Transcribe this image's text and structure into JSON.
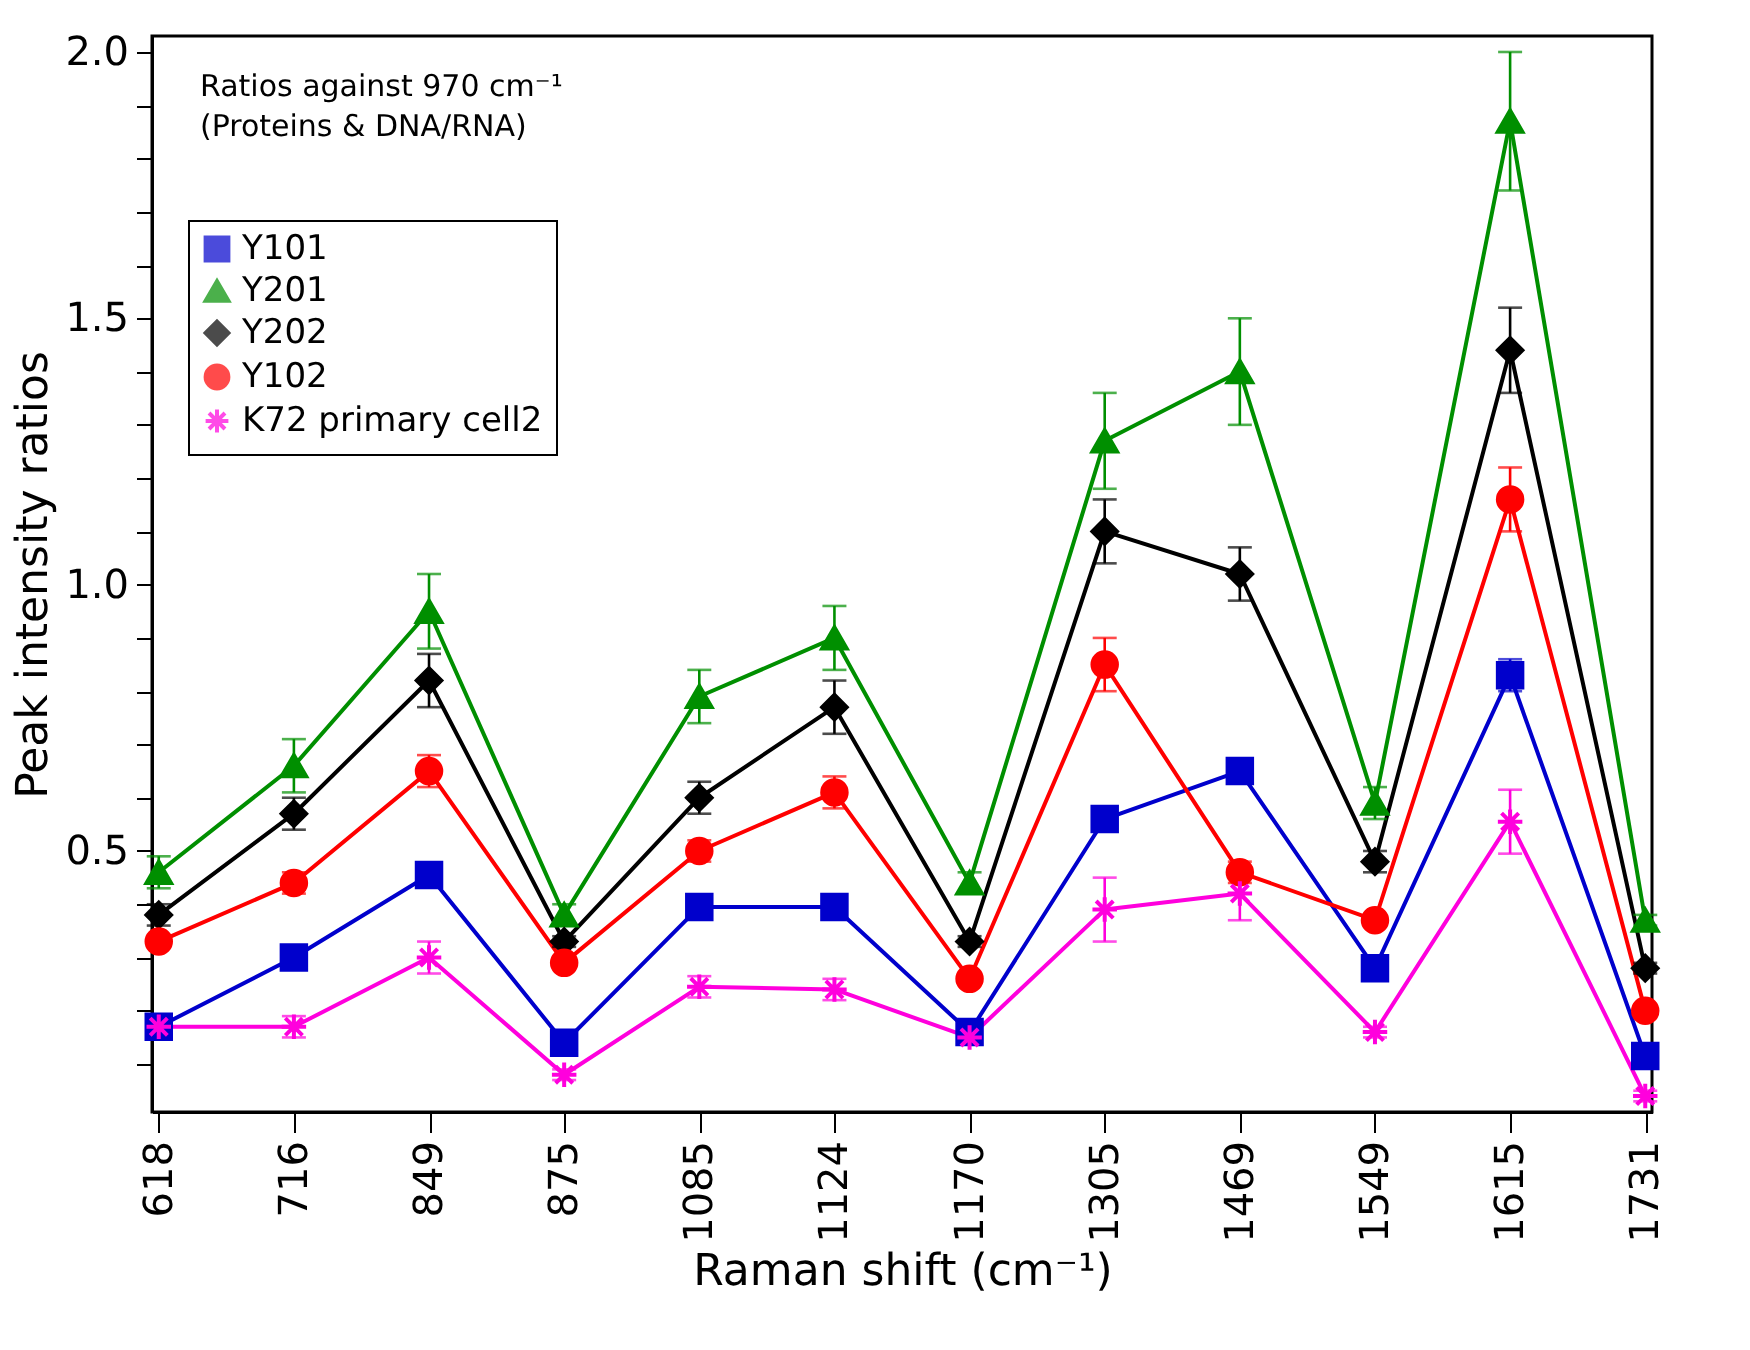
{
  "chart_data": {
    "type": "line",
    "xlabel": "Raman shift (cm⁻¹)",
    "ylabel": "Peak intensity ratios",
    "annotations": [
      "Ratios against 970 cm⁻¹\n(Proteins & DNA/RNA)"
    ],
    "categories": [
      "618",
      "716",
      "849",
      "875",
      "1085",
      "1124",
      "1170",
      "1305",
      "1469",
      "1549",
      "1615",
      "1731"
    ],
    "ylim": [
      0.01,
      2.03
    ],
    "yticks": [
      {
        "value": 0.1,
        "label": null
      },
      {
        "value": 0.2,
        "label": null
      },
      {
        "value": 0.3,
        "label": null
      },
      {
        "value": 0.4,
        "label": null
      },
      {
        "value": 0.5,
        "label": "0.5"
      },
      {
        "value": 0.6,
        "label": null
      },
      {
        "value": 0.7,
        "label": null
      },
      {
        "value": 0.8,
        "label": null
      },
      {
        "value": 0.9,
        "label": null
      },
      {
        "value": 1.0,
        "label": "1.0"
      },
      {
        "value": 1.1,
        "label": null
      },
      {
        "value": 1.2,
        "label": null
      },
      {
        "value": 1.3,
        "label": null
      },
      {
        "value": 1.4,
        "label": null
      },
      {
        "value": 1.5,
        "label": "1.5"
      },
      {
        "value": 1.6,
        "label": null
      },
      {
        "value": 1.7,
        "label": null
      },
      {
        "value": 1.8,
        "label": null
      },
      {
        "value": 1.9,
        "label": null
      },
      {
        "value": 2.0,
        "label": "2.0"
      }
    ],
    "grid": false,
    "legend": "top left",
    "line_style": "solid",
    "series": [
      {
        "name": "Y101",
        "color": "#0000cc",
        "marker": "square",
        "values": [
          0.17,
          0.3,
          0.455,
          0.14,
          0.395,
          0.395,
          0.16,
          0.56,
          0.65,
          0.28,
          0.83,
          0.115
        ],
        "errors": [
          0.01,
          0.01,
          0.01,
          0.01,
          0.01,
          0.01,
          0.01,
          0.01,
          0.01,
          0.01,
          0.03,
          0.01
        ]
      },
      {
        "name": "Y201",
        "color": "#008f00",
        "marker": "triangle",
        "values": [
          0.46,
          0.66,
          0.95,
          0.38,
          0.79,
          0.9,
          0.44,
          1.27,
          1.4,
          0.59,
          1.87,
          0.37
        ],
        "errors": [
          0.03,
          0.05,
          0.07,
          0.02,
          0.05,
          0.06,
          0.02,
          0.09,
          0.1,
          0.03,
          0.13,
          0.01
        ]
      },
      {
        "name": "Y202",
        "color": "#000000",
        "marker": "diamond",
        "values": [
          0.38,
          0.57,
          0.82,
          0.33,
          0.6,
          0.77,
          0.33,
          1.1,
          1.02,
          0.48,
          1.44,
          0.28
        ],
        "errors": [
          0.02,
          0.03,
          0.05,
          0.01,
          0.03,
          0.05,
          0.01,
          0.06,
          0.05,
          0.02,
          0.08,
          0.01
        ]
      },
      {
        "name": "Y102",
        "color": "#ff0000",
        "marker": "circle",
        "values": [
          0.33,
          0.44,
          0.65,
          0.29,
          0.5,
          0.61,
          0.26,
          0.85,
          0.46,
          0.37,
          1.16,
          0.2
        ],
        "errors": [
          0.01,
          0.02,
          0.03,
          0.01,
          0.02,
          0.03,
          0.01,
          0.05,
          0.02,
          0.01,
          0.06,
          0.01
        ]
      },
      {
        "name": "K72 primary cell2",
        "color": "#ff00dd",
        "marker": "cross",
        "values": [
          0.17,
          0.17,
          0.3,
          0.08,
          0.245,
          0.24,
          0.15,
          0.39,
          0.42,
          0.16,
          0.555,
          0.04
        ],
        "errors": [
          0.01,
          0.02,
          0.03,
          0.01,
          0.02,
          0.02,
          0.01,
          0.06,
          0.05,
          0.01,
          0.06,
          0.01
        ]
      }
    ]
  }
}
